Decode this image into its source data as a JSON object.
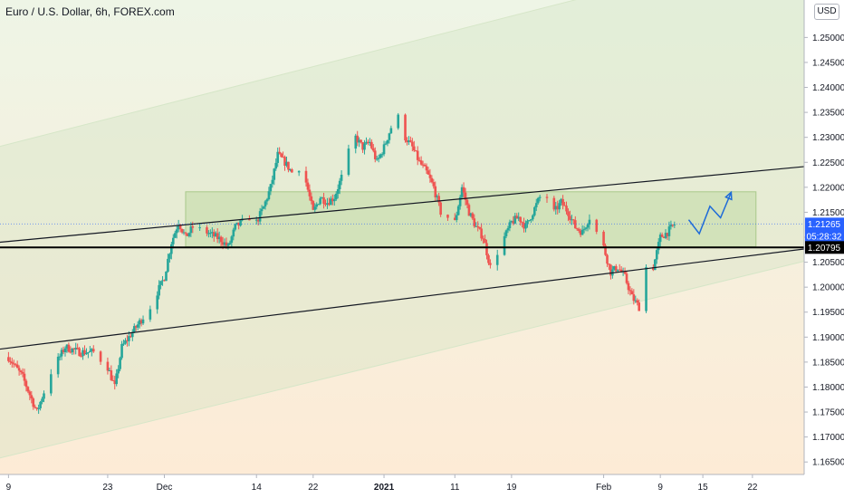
{
  "header": {
    "title": "Euro / U.S. Dollar, 6h, FOREX.com",
    "currency_label": "USD"
  },
  "colors": {
    "up": "#26a69a",
    "down": "#ef5350",
    "channel_fill": "#cfe3c0",
    "zone_fill": "#b8d69b",
    "arrow": "#1e6bd8",
    "badge_blue": "#2962ff",
    "badge_black": "#000000",
    "trendline": "#131722"
  },
  "chart_data": {
    "type": "candlestick",
    "title": "Euro / U.S. Dollar, 6h, FOREX.com",
    "ylim": [
      1.1625,
      1.2575
    ],
    "y_ticks": [
      "1.16500",
      "1.17000",
      "1.17500",
      "1.18000",
      "1.18500",
      "1.19000",
      "1.19500",
      "1.20000",
      "1.20500",
      "1.21000",
      "1.21500",
      "1.22000",
      "1.22500",
      "1.23000",
      "1.23500",
      "1.24000",
      "1.24500",
      "1.25000"
    ],
    "x_ticks": [
      {
        "label": "9",
        "day": 0
      },
      {
        "label": "23",
        "day": 14
      },
      {
        "label": "Dec",
        "day": 22,
        "bold": false
      },
      {
        "label": "14",
        "day": 35
      },
      {
        "label": "22",
        "day": 43
      },
      {
        "label": "2021",
        "day": 53,
        "bold": true
      },
      {
        "label": "11",
        "day": 63
      },
      {
        "label": "19",
        "day": 71
      },
      {
        "label": "Feb",
        "day": 84
      },
      {
        "label": "9",
        "day": 92
      },
      {
        "label": "15",
        "day": 98
      },
      {
        "label": "22",
        "day": 105
      }
    ],
    "x_range_days": [
      -1.2,
      112.3
    ],
    "price_path": [
      [
        0,
        1.186
      ],
      [
        2,
        1.182
      ],
      [
        4,
        1.175
      ],
      [
        6,
        1.183
      ],
      [
        8,
        1.188
      ],
      [
        10,
        1.187
      ],
      [
        12,
        1.187
      ],
      [
        14,
        1.184
      ],
      [
        15,
        1.18
      ],
      [
        16,
        1.188
      ],
      [
        18,
        1.192
      ],
      [
        20,
        1.196
      ],
      [
        22,
        1.202
      ],
      [
        23,
        1.209
      ],
      [
        24,
        1.213
      ],
      [
        25,
        1.21
      ],
      [
        26,
        1.212
      ],
      [
        28,
        1.211
      ],
      [
        30,
        1.2095
      ],
      [
        31,
        1.208
      ],
      [
        32,
        1.212
      ],
      [
        34,
        1.214
      ],
      [
        35,
        1.213
      ],
      [
        36,
        1.216
      ],
      [
        37,
        1.22
      ],
      [
        38,
        1.2265
      ],
      [
        39,
        1.225
      ],
      [
        40,
        1.223
      ],
      [
        41,
        1.224
      ],
      [
        42,
        1.221
      ],
      [
        43,
        1.215
      ],
      [
        44,
        1.218
      ],
      [
        45,
        1.217
      ],
      [
        46,
        1.218
      ],
      [
        47,
        1.222
      ],
      [
        48,
        1.227
      ],
      [
        49,
        1.23
      ],
      [
        50,
        1.228
      ],
      [
        51,
        1.229
      ],
      [
        52,
        1.225
      ],
      [
        53,
        1.228
      ],
      [
        54,
        1.232
      ],
      [
        55,
        1.234
      ],
      [
        56,
        1.23
      ],
      [
        57,
        1.228
      ],
      [
        58,
        1.225
      ],
      [
        59,
        1.223
      ],
      [
        60,
        1.22
      ],
      [
        61,
        1.215
      ],
      [
        62,
        1.214
      ],
      [
        63,
        1.213
      ],
      [
        64,
        1.22
      ],
      [
        65,
        1.215
      ],
      [
        66,
        1.212
      ],
      [
        67,
        1.21
      ],
      [
        68,
        1.204
      ],
      [
        69,
        1.207
      ],
      [
        70,
        1.21
      ],
      [
        71,
        1.213
      ],
      [
        72,
        1.214
      ],
      [
        73,
        1.212
      ],
      [
        74,
        1.215
      ],
      [
        75,
        1.218
      ],
      [
        76,
        1.218
      ],
      [
        77,
        1.215
      ],
      [
        78,
        1.217
      ],
      [
        79,
        1.215
      ],
      [
        80,
        1.212
      ],
      [
        81,
        1.211
      ],
      [
        82,
        1.214
      ],
      [
        83,
        1.211
      ],
      [
        84,
        1.208
      ],
      [
        85,
        1.203
      ],
      [
        86,
        1.204
      ],
      [
        87,
        1.202
      ],
      [
        88,
        1.198
      ],
      [
        89,
        1.196
      ],
      [
        90,
        1.204
      ],
      [
        91,
        1.204
      ],
      [
        92,
        1.21
      ],
      [
        93,
        1.211
      ],
      [
        94,
        1.2126
      ]
    ],
    "last_price": "1.21265",
    "countdown": "05:28:32",
    "level_price": "1.20795",
    "support_zone": {
      "day_from": 25,
      "day_to": 105.5,
      "y_from": 1.2081,
      "y_to": 1.2191
    },
    "channel": {
      "day_from": -1.2,
      "day_to": 112.3,
      "upper_from": 1.2282,
      "upper_to": 1.2692,
      "lower_from": 1.1658,
      "lower_to": 1.2052
    },
    "trend_lines": [
      {
        "day_from": -1.2,
        "y_from": 1.209,
        "day_to": 116.5,
        "y_to": 1.2247
      },
      {
        "day_from": -1.2,
        "y_from": 1.1876,
        "day_to": 114.9,
        "y_to": 1.2081
      }
    ],
    "projection": [
      [
        96,
        1.2135
      ],
      [
        97.5,
        1.2107
      ],
      [
        99,
        1.2162
      ],
      [
        100.5,
        1.2139
      ],
      [
        102,
        1.219
      ]
    ],
    "grid": false
  }
}
